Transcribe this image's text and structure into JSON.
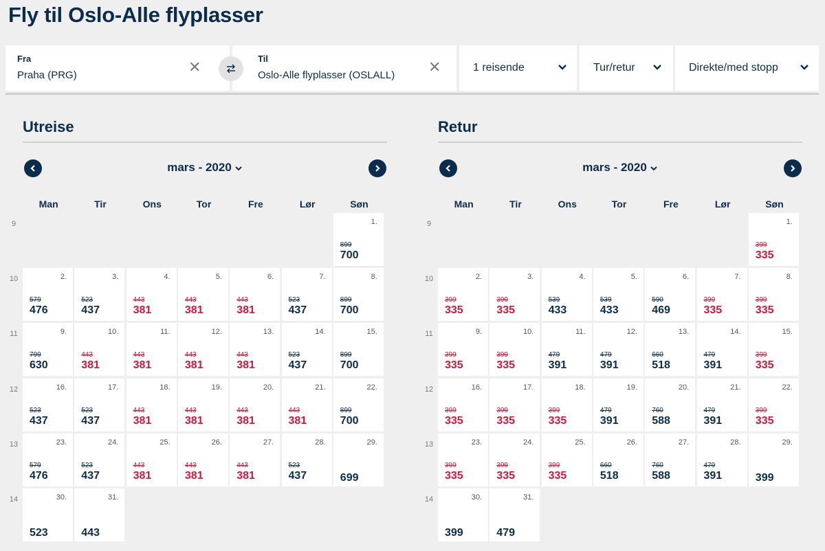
{
  "page": {
    "title": "Fly til Oslo-Alle flyplasser"
  },
  "search": {
    "from_label": "Fra",
    "from_value": "Praha (PRG)",
    "to_label": "Til",
    "to_value": "Oslo-Alle flyplasser (OSLALL)",
    "travellers": "1 reisende",
    "trip_type": "Tur/retur",
    "stops": "Direkte/med stopp"
  },
  "outbound": {
    "heading": "Utreise",
    "month": "mars - 2020",
    "weekdays": [
      "Man",
      "Tir",
      "Ons",
      "Tor",
      "Fre",
      "Lør",
      "Søn"
    ],
    "weeks": [
      {
        "week": "9",
        "days": [
          null,
          null,
          null,
          null,
          null,
          null,
          {
            "d": "1.",
            "old": "899",
            "price": "700",
            "red": false
          }
        ]
      },
      {
        "week": "10",
        "days": [
          {
            "d": "2.",
            "old": "579",
            "price": "476",
            "red": false
          },
          {
            "d": "3.",
            "old": "523",
            "price": "437",
            "red": false
          },
          {
            "d": "4.",
            "old": "443",
            "price": "381",
            "red": true
          },
          {
            "d": "5.",
            "old": "443",
            "price": "381",
            "red": true
          },
          {
            "d": "6.",
            "old": "443",
            "price": "381",
            "red": true
          },
          {
            "d": "7.",
            "old": "523",
            "price": "437",
            "red": false
          },
          {
            "d": "8.",
            "old": "899",
            "price": "700",
            "red": false
          }
        ]
      },
      {
        "week": "11",
        "days": [
          {
            "d": "9.",
            "old": "799",
            "price": "630",
            "red": false
          },
          {
            "d": "10.",
            "old": "443",
            "price": "381",
            "red": true
          },
          {
            "d": "11.",
            "old": "443",
            "price": "381",
            "red": true
          },
          {
            "d": "12.",
            "old": "443",
            "price": "381",
            "red": true
          },
          {
            "d": "13.",
            "old": "443",
            "price": "381",
            "red": true
          },
          {
            "d": "14.",
            "old": "523",
            "price": "437",
            "red": false
          },
          {
            "d": "15.",
            "old": "899",
            "price": "700",
            "red": false
          }
        ]
      },
      {
        "week": "12",
        "days": [
          {
            "d": "16.",
            "old": "523",
            "price": "437",
            "red": false
          },
          {
            "d": "17.",
            "old": "523",
            "price": "437",
            "red": false
          },
          {
            "d": "18.",
            "old": "443",
            "price": "381",
            "red": true
          },
          {
            "d": "19.",
            "old": "443",
            "price": "381",
            "red": true
          },
          {
            "d": "20.",
            "old": "443",
            "price": "381",
            "red": true
          },
          {
            "d": "21.",
            "old": "443",
            "price": "381",
            "red": true
          },
          {
            "d": "22.",
            "old": "899",
            "price": "700",
            "red": false
          }
        ]
      },
      {
        "week": "13",
        "days": [
          {
            "d": "23.",
            "old": "579",
            "price": "476",
            "red": false
          },
          {
            "d": "24.",
            "old": "523",
            "price": "437",
            "red": false
          },
          {
            "d": "25.",
            "old": "443",
            "price": "381",
            "red": true
          },
          {
            "d": "26.",
            "old": "443",
            "price": "381",
            "red": true
          },
          {
            "d": "27.",
            "old": "443",
            "price": "381",
            "red": true
          },
          {
            "d": "28.",
            "old": "523",
            "price": "437",
            "red": false
          },
          {
            "d": "29.",
            "old": "",
            "price": "699",
            "red": false
          }
        ]
      },
      {
        "week": "14",
        "days": [
          {
            "d": "30.",
            "old": "",
            "price": "523",
            "red": false
          },
          {
            "d": "31.",
            "old": "",
            "price": "443",
            "red": false
          },
          null,
          null,
          null,
          null,
          null
        ]
      }
    ]
  },
  "return": {
    "heading": "Retur",
    "month": "mars - 2020",
    "weekdays": [
      "Man",
      "Tir",
      "Ons",
      "Tor",
      "Fre",
      "Lør",
      "Søn"
    ],
    "weeks": [
      {
        "week": "9",
        "days": [
          null,
          null,
          null,
          null,
          null,
          null,
          {
            "d": "1.",
            "old": "399",
            "price": "335",
            "red": true
          }
        ]
      },
      {
        "week": "10",
        "days": [
          {
            "d": "2.",
            "old": "399",
            "price": "335",
            "red": true
          },
          {
            "d": "3.",
            "old": "399",
            "price": "335",
            "red": true
          },
          {
            "d": "4.",
            "old": "539",
            "price": "433",
            "red": false
          },
          {
            "d": "5.",
            "old": "539",
            "price": "433",
            "red": false
          },
          {
            "d": "6.",
            "old": "590",
            "price": "469",
            "red": false
          },
          {
            "d": "7.",
            "old": "399",
            "price": "335",
            "red": true
          },
          {
            "d": "8.",
            "old": "399",
            "price": "335",
            "red": true
          }
        ]
      },
      {
        "week": "11",
        "days": [
          {
            "d": "9.",
            "old": "399",
            "price": "335",
            "red": true
          },
          {
            "d": "10.",
            "old": "399",
            "price": "335",
            "red": true
          },
          {
            "d": "11.",
            "old": "479",
            "price": "391",
            "red": false
          },
          {
            "d": "12.",
            "old": "479",
            "price": "391",
            "red": false
          },
          {
            "d": "13.",
            "old": "660",
            "price": "518",
            "red": false
          },
          {
            "d": "14.",
            "old": "479",
            "price": "391",
            "red": false
          },
          {
            "d": "15.",
            "old": "399",
            "price": "335",
            "red": true
          }
        ]
      },
      {
        "week": "12",
        "days": [
          {
            "d": "16.",
            "old": "399",
            "price": "335",
            "red": true
          },
          {
            "d": "17.",
            "old": "399",
            "price": "335",
            "red": true
          },
          {
            "d": "18.",
            "old": "399",
            "price": "335",
            "red": true
          },
          {
            "d": "19.",
            "old": "479",
            "price": "391",
            "red": false
          },
          {
            "d": "20.",
            "old": "760",
            "price": "588",
            "red": false
          },
          {
            "d": "21.",
            "old": "479",
            "price": "391",
            "red": false
          },
          {
            "d": "22.",
            "old": "399",
            "price": "335",
            "red": true
          }
        ]
      },
      {
        "week": "13",
        "days": [
          {
            "d": "23.",
            "old": "399",
            "price": "335",
            "red": true
          },
          {
            "d": "24.",
            "old": "399",
            "price": "335",
            "red": true
          },
          {
            "d": "25.",
            "old": "399",
            "price": "335",
            "red": true
          },
          {
            "d": "26.",
            "old": "660",
            "price": "518",
            "red": false
          },
          {
            "d": "27.",
            "old": "760",
            "price": "588",
            "red": false
          },
          {
            "d": "28.",
            "old": "479",
            "price": "391",
            "red": false
          },
          {
            "d": "29.",
            "old": "",
            "price": "399",
            "red": false
          }
        ]
      },
      {
        "week": "14",
        "days": [
          {
            "d": "30.",
            "old": "",
            "price": "399",
            "red": false
          },
          {
            "d": "31.",
            "old": "",
            "price": "479",
            "red": false
          },
          null,
          null,
          null,
          null,
          null
        ]
      }
    ]
  },
  "colors": {
    "primary": "#0b2c4a",
    "discount": "#d6163a",
    "background": "#efefef"
  },
  "icons": {
    "clear": "close-icon",
    "swap": "swap-arrows-icon",
    "dropdown": "chevron-down-icon",
    "prev": "chevron-left-icon",
    "next": "chevron-right-icon"
  }
}
